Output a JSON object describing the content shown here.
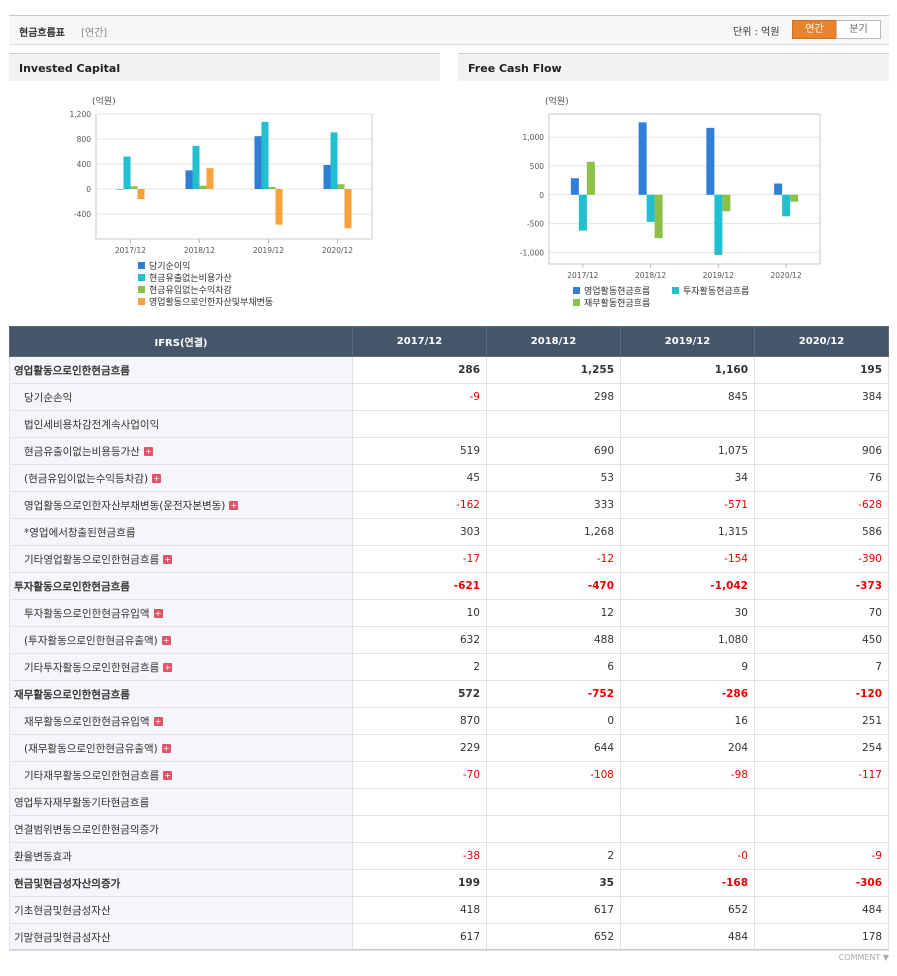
{
  "header": {
    "title": "현금흐름표",
    "subtitle": "[연간]",
    "unit": "단위 : 억원",
    "tabs": [
      "연간",
      "분기"
    ],
    "active_tab": 0
  },
  "chart_data": [
    {
      "type": "bar",
      "title": "Invested Capital",
      "ylabel": "(억원)",
      "categories": [
        "2017/12",
        "2018/12",
        "2019/12",
        "2020/12"
      ],
      "ylim": [
        -800,
        1200
      ],
      "yticks": [
        {
          "value": 1200,
          "label": "1,200"
        },
        800,
        400,
        0,
        -400
      ],
      "grid": true,
      "legend": "bottom",
      "series": [
        {
          "name": "당기순이익",
          "color": "#2f7ed8",
          "values": [
            -9,
            298,
            845,
            384
          ]
        },
        {
          "name": "현금유출없는비용가산",
          "color": "#22bfcf",
          "values": [
            519,
            690,
            1075,
            906
          ]
        },
        {
          "name": "현금유입없는수익차감",
          "color": "#8cc04a",
          "values": [
            45,
            53,
            34,
            76
          ]
        },
        {
          "name": "영업활동으로인한자산및부채변동",
          "color": "#f7a23b",
          "values": [
            -162,
            333,
            -571,
            -628
          ]
        }
      ]
    },
    {
      "type": "bar",
      "title": "Free Cash Flow",
      "ylabel": "(억원)",
      "categories": [
        "2017/12",
        "2018/12",
        "2019/12",
        "2020/12"
      ],
      "ylim": [
        -1200,
        1400
      ],
      "yticks": [
        {
          "value": 1000,
          "label": "1,000"
        },
        500,
        0,
        -500,
        {
          "value": -1000,
          "label": "-1,000"
        }
      ],
      "grid": true,
      "legend": "bottom",
      "series": [
        {
          "name": "영업활동현금흐름",
          "color": "#2f7ed8",
          "values": [
            286,
            1255,
            1160,
            195
          ]
        },
        {
          "name": "투자활동현금흐름",
          "color": "#22bfcf",
          "values": [
            -621,
            -470,
            -1042,
            -373
          ]
        },
        {
          "name": "재무활동현금흐름",
          "color": "#8cc04a",
          "values": [
            572,
            -752,
            -286,
            -120
          ]
        }
      ]
    }
  ],
  "table": {
    "columns": [
      "IFRS(연결)",
      "2017/12",
      "2018/12",
      "2019/12",
      "2020/12"
    ],
    "rows": [
      {
        "label": "영업활동으로인한현금흐름",
        "bold": true,
        "indent": false,
        "expandable": false,
        "values": [
          "286",
          "1,255",
          "1,160",
          "195"
        ]
      },
      {
        "label": "당기순손익",
        "bold": false,
        "indent": true,
        "expandable": false,
        "values": [
          "-9",
          "298",
          "845",
          "384"
        ]
      },
      {
        "label": "법인세비용차감전계속사업이익",
        "bold": false,
        "indent": true,
        "expandable": false,
        "values": [
          null,
          null,
          null,
          null
        ]
      },
      {
        "label": "현금유출이없는비용등가산",
        "bold": false,
        "indent": true,
        "expandable": true,
        "values": [
          "519",
          "690",
          "1,075",
          "906"
        ]
      },
      {
        "label": "(현금유입이없는수익등차감)",
        "bold": false,
        "indent": true,
        "expandable": true,
        "values": [
          "45",
          "53",
          "34",
          "76"
        ]
      },
      {
        "label": "영업활동으로인한자산부채변동(운전자본변동)",
        "bold": false,
        "indent": true,
        "expandable": true,
        "values": [
          "-162",
          "333",
          "-571",
          "-628"
        ]
      },
      {
        "label": "*영업에서창출된현금흐름",
        "bold": false,
        "indent": true,
        "expandable": false,
        "values": [
          "303",
          "1,268",
          "1,315",
          "586"
        ]
      },
      {
        "label": "기타영업활동으로인한현금흐름",
        "bold": false,
        "indent": true,
        "expandable": true,
        "values": [
          "-17",
          "-12",
          "-154",
          "-390"
        ]
      },
      {
        "label": "투자활동으로인한현금흐름",
        "bold": true,
        "indent": false,
        "expandable": false,
        "values": [
          "-621",
          "-470",
          "-1,042",
          "-373"
        ]
      },
      {
        "label": "투자활동으로인한현금유입액",
        "bold": false,
        "indent": true,
        "expandable": true,
        "values": [
          "10",
          "12",
          "30",
          "70"
        ]
      },
      {
        "label": "(투자활동으로인한현금유출액)",
        "bold": false,
        "indent": true,
        "expandable": true,
        "values": [
          "632",
          "488",
          "1,080",
          "450"
        ]
      },
      {
        "label": "기타투자활동으로인한현금흐름",
        "bold": false,
        "indent": true,
        "expandable": true,
        "values": [
          "2",
          "6",
          "9",
          "7"
        ]
      },
      {
        "label": "재무활동으로인한현금흐름",
        "bold": true,
        "indent": false,
        "expandable": false,
        "values": [
          "572",
          "-752",
          "-286",
          "-120"
        ]
      },
      {
        "label": "재무활동으로인한현금유입액",
        "bold": false,
        "indent": true,
        "expandable": true,
        "values": [
          "870",
          "0",
          "16",
          "251"
        ]
      },
      {
        "label": "(재무활동으로인한현금유출액)",
        "bold": false,
        "indent": true,
        "expandable": true,
        "values": [
          "229",
          "644",
          "204",
          "254"
        ]
      },
      {
        "label": "기타재무활동으로인한현금흐름",
        "bold": false,
        "indent": true,
        "expandable": true,
        "values": [
          "-70",
          "-108",
          "-98",
          "-117"
        ]
      },
      {
        "label": "영업투자재무활동기타현금흐름",
        "bold": false,
        "indent": false,
        "expandable": false,
        "values": [
          null,
          null,
          null,
          null
        ]
      },
      {
        "label": "연결범위변동으로인한현금의증가",
        "bold": false,
        "indent": false,
        "expandable": false,
        "values": [
          null,
          null,
          null,
          null
        ]
      },
      {
        "label": "환율변동효과",
        "bold": false,
        "indent": false,
        "expandable": false,
        "values": [
          "-38",
          "2",
          "-0",
          "-9"
        ]
      },
      {
        "label": "현금및현금성자산의증가",
        "bold": true,
        "indent": false,
        "expandable": false,
        "values": [
          "199",
          "35",
          "-168",
          "-306"
        ]
      },
      {
        "label": "기초현금및현금성자산",
        "bold": false,
        "indent": false,
        "expandable": false,
        "values": [
          "418",
          "617",
          "652",
          "484"
        ]
      },
      {
        "label": "기말현금및현금성자산",
        "bold": false,
        "indent": false,
        "expandable": false,
        "values": [
          "617",
          "652",
          "484",
          "178"
        ]
      }
    ]
  },
  "footer": {
    "comment": "COMMENT ▼"
  }
}
